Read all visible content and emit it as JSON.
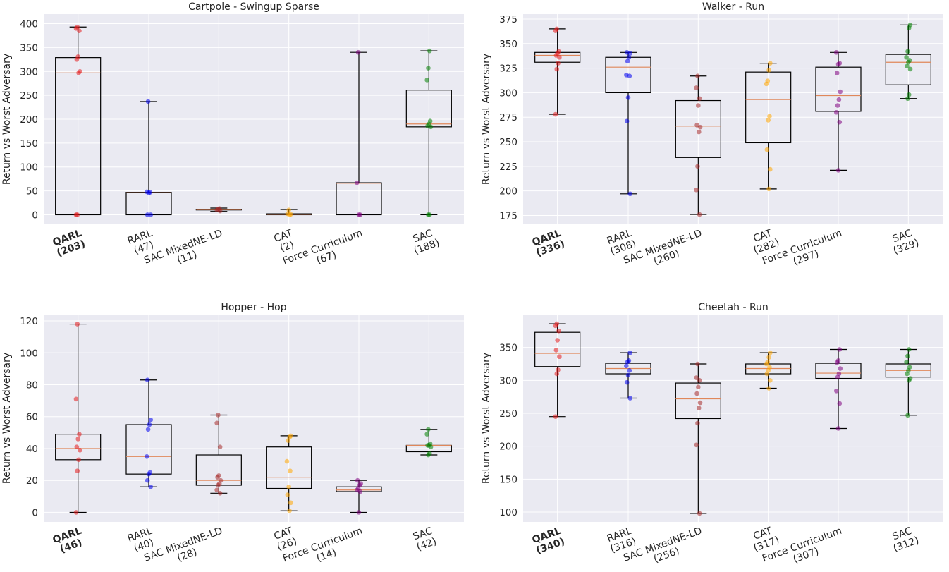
{
  "colors": {
    "background": "#eaeaf2",
    "grid": "#ffffff",
    "box": "#000000",
    "median": "#e0875a",
    "points": [
      "#e41a1c",
      "#0000ee",
      "#a52a2a",
      "#ffa500",
      "#800080",
      "#008000"
    ]
  },
  "chart_data": [
    {
      "type": "box",
      "title": "Cartpole - Swingup Sparse",
      "ylabel": "Return vs Worst Adversary",
      "ylim": [
        -20,
        420
      ],
      "yticks": [
        0,
        50,
        100,
        150,
        200,
        250,
        300,
        350,
        400
      ],
      "grid": true,
      "categories": [
        "QARL",
        "RARL",
        "SAC MixedNE-LD",
        "CAT",
        "Force Curriculum",
        "SAC"
      ],
      "category_labels": [
        "(203)",
        "(47)",
        "(11)",
        "(2)",
        "(67)",
        "(188)"
      ],
      "boxes": [
        {
          "whislo": 0,
          "q1": 0,
          "med": 297,
          "q3": 329,
          "whishi": 393,
          "points": [
            0,
            0,
            297,
            300,
            325,
            331,
            385,
            390,
            393
          ]
        },
        {
          "whislo": 0,
          "q1": 0,
          "med": 46,
          "q3": 47,
          "whishi": 237,
          "points": [
            0,
            0,
            46,
            47,
            48,
            237
          ]
        },
        {
          "whislo": 7,
          "q1": 10,
          "med": 11,
          "q3": 11,
          "whishi": 14,
          "points": [
            8,
            10,
            12,
            13
          ]
        },
        {
          "whislo": 0,
          "q1": 0,
          "med": 1,
          "q3": 2,
          "whishi": 11,
          "points": [
            0,
            1,
            2,
            10
          ]
        },
        {
          "whislo": 0,
          "q1": 0,
          "med": 66,
          "q3": 67,
          "whishi": 340,
          "points": [
            0,
            0,
            67,
            340
          ]
        },
        {
          "whislo": 0,
          "q1": 184,
          "med": 190,
          "q3": 261,
          "whishi": 343,
          "points": [
            0,
            0,
            184,
            186,
            190,
            196,
            282,
            307,
            343
          ]
        }
      ]
    },
    {
      "type": "box",
      "title": "Walker - Run",
      "ylabel": "Return vs Worst Adversary",
      "ylim": [
        166,
        380
      ],
      "yticks": [
        175,
        200,
        225,
        250,
        275,
        300,
        325,
        350,
        375
      ],
      "grid": true,
      "categories": [
        "QARL",
        "RARL",
        "SAC MixedNE-LD",
        "CAT",
        "Force Curriculum",
        "SAC"
      ],
      "category_labels": [
        "(336)",
        "(308)",
        "(260)",
        "(282)",
        "(297)",
        "(329)"
      ],
      "boxes": [
        {
          "whislo": 278,
          "q1": 331,
          "med": 338,
          "q3": 341,
          "whishi": 365,
          "points": [
            278,
            324,
            330,
            336,
            338,
            340,
            342,
            363,
            365
          ]
        },
        {
          "whislo": 197,
          "q1": 300,
          "med": 326,
          "q3": 336,
          "whishi": 341,
          "points": [
            197,
            271,
            295,
            317,
            318,
            332,
            336,
            340,
            341
          ]
        },
        {
          "whislo": 176,
          "q1": 234,
          "med": 266,
          "q3": 292,
          "whishi": 317,
          "points": [
            176,
            201,
            225,
            260,
            265,
            267,
            287,
            294,
            305,
            317
          ]
        },
        {
          "whislo": 202,
          "q1": 249,
          "med": 293,
          "q3": 321,
          "whishi": 330,
          "points": [
            202,
            222,
            242,
            272,
            276,
            309,
            312,
            323,
            330
          ]
        },
        {
          "whislo": 221,
          "q1": 281,
          "med": 297,
          "q3": 326,
          "whishi": 341,
          "points": [
            221,
            270,
            280,
            287,
            293,
            301,
            320,
            329,
            330,
            341
          ]
        },
        {
          "whislo": 294,
          "q1": 308,
          "med": 331,
          "q3": 339,
          "whishi": 369,
          "points": [
            294,
            298,
            324,
            327,
            331,
            333,
            336,
            342,
            366,
            369
          ]
        }
      ]
    },
    {
      "type": "box",
      "title": "Hopper - Hop",
      "ylabel": "Return vs Worst Adversary",
      "ylim": [
        -6,
        124
      ],
      "yticks": [
        0,
        20,
        40,
        60,
        80,
        100,
        120
      ],
      "grid": true,
      "categories": [
        "QARL",
        "RARL",
        "SAC MixedNE-LD",
        "CAT",
        "Force Curriculum",
        "SAC"
      ],
      "category_labels": [
        "(46)",
        "(40)",
        "(28)",
        "(26)",
        "(14)",
        "(42)"
      ],
      "boxes": [
        {
          "whislo": 0,
          "q1": 33,
          "med": 40,
          "q3": 49,
          "whishi": 118,
          "points": [
            0,
            26,
            33,
            39,
            41,
            46,
            49,
            71,
            118
          ]
        },
        {
          "whislo": 16,
          "q1": 24,
          "med": 35,
          "q3": 55,
          "whishi": 83,
          "points": [
            16,
            20,
            24,
            25,
            35,
            52,
            55,
            58,
            83
          ]
        },
        {
          "whislo": 12,
          "q1": 17,
          "med": 20,
          "q3": 36,
          "whishi": 61,
          "points": [
            12,
            14,
            17,
            18,
            20,
            22,
            23,
            41,
            56,
            61
          ]
        },
        {
          "whislo": 1,
          "q1": 15,
          "med": 22,
          "q3": 41,
          "whishi": 48,
          "points": [
            1,
            6,
            11,
            16,
            26,
            32,
            45,
            47,
            48
          ]
        },
        {
          "whislo": 0,
          "q1": 13,
          "med": 14,
          "q3": 16,
          "whishi": 20,
          "points": [
            0,
            13,
            14,
            15,
            17,
            18,
            20
          ]
        },
        {
          "whislo": 36,
          "q1": 38,
          "med": 42,
          "q3": 42,
          "whishi": 52,
          "points": [
            36,
            37,
            41,
            42,
            42,
            43,
            49,
            52
          ]
        }
      ]
    },
    {
      "type": "box",
      "title": "Cheetah - Run",
      "ylabel": "Return vs Worst Adversary",
      "ylim": [
        85,
        400
      ],
      "yticks": [
        100,
        150,
        200,
        250,
        300,
        350
      ],
      "grid": true,
      "categories": [
        "QARL",
        "RARL",
        "SAC MixedNE-LD",
        "CAT",
        "Force Curriculum",
        "SAC"
      ],
      "category_labels": [
        "(340)",
        "(316)",
        "(256)",
        "(317)",
        "(307)",
        "(312)"
      ],
      "boxes": [
        {
          "whislo": 245,
          "q1": 321,
          "med": 341,
          "q3": 373,
          "whishi": 386,
          "points": [
            245,
            310,
            316,
            336,
            346,
            361,
            375,
            383,
            386
          ]
        },
        {
          "whislo": 273,
          "q1": 310,
          "med": 318,
          "q3": 326,
          "whishi": 342,
          "points": [
            273,
            297,
            308,
            315,
            322,
            328,
            330,
            342
          ]
        },
        {
          "whislo": 98,
          "q1": 242,
          "med": 272,
          "q3": 296,
          "whishi": 325,
          "points": [
            98,
            202,
            235,
            258,
            266,
            280,
            290,
            300,
            304,
            325
          ]
        },
        {
          "whislo": 288,
          "q1": 310,
          "med": 318,
          "q3": 325,
          "whishi": 342,
          "points": [
            288,
            300,
            310,
            315,
            320,
            325,
            328,
            335,
            342
          ]
        },
        {
          "whislo": 227,
          "q1": 303,
          "med": 311,
          "q3": 326,
          "whishi": 347,
          "points": [
            227,
            265,
            284,
            305,
            310,
            318,
            327,
            330,
            347
          ]
        },
        {
          "whislo": 247,
          "q1": 305,
          "med": 315,
          "q3": 325,
          "whishi": 347,
          "points": [
            247,
            300,
            303,
            310,
            315,
            320,
            328,
            337,
            347
          ]
        }
      ]
    }
  ]
}
